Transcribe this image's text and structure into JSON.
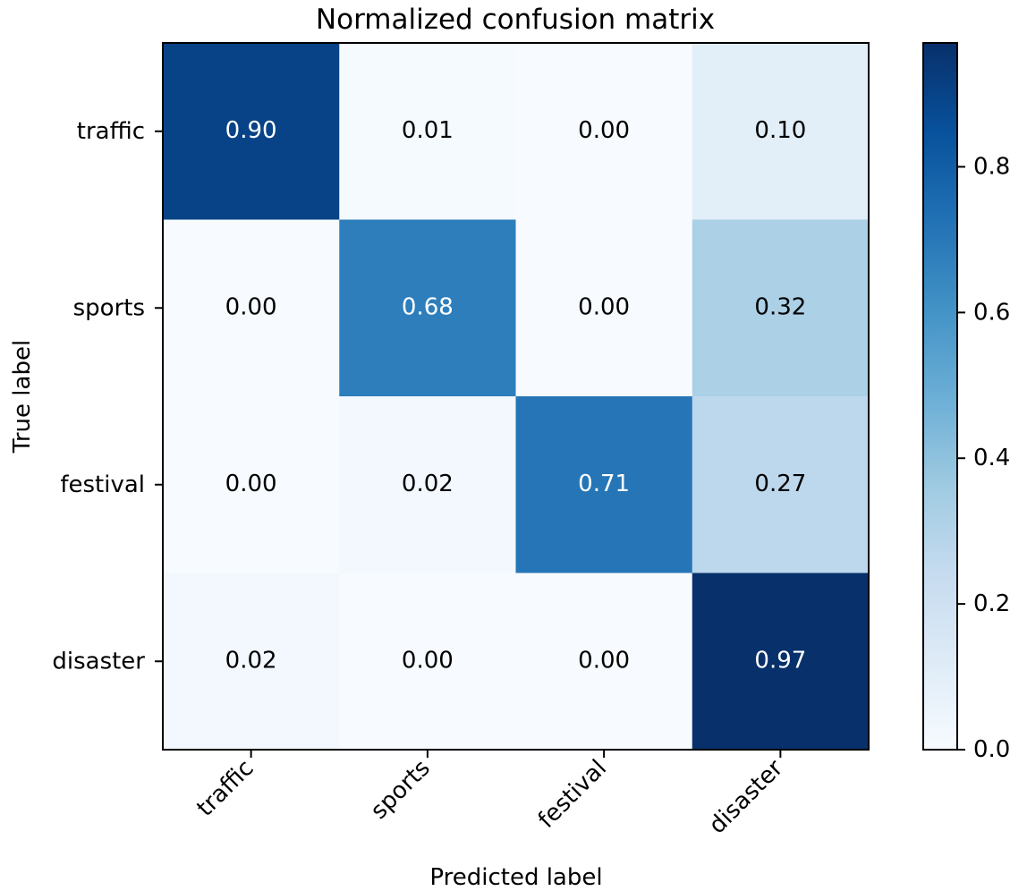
{
  "chart_data": {
    "type": "heatmap",
    "title": "Normalized confusion matrix",
    "xlabel": "Predicted label",
    "ylabel": "True label",
    "x_categories": [
      "traffic",
      "sports",
      "festival",
      "disaster"
    ],
    "y_categories": [
      "traffic",
      "sports",
      "festival",
      "disaster"
    ],
    "values": [
      [
        0.9,
        0.01,
        0.0,
        0.1
      ],
      [
        0.0,
        0.68,
        0.0,
        0.32
      ],
      [
        0.0,
        0.02,
        0.71,
        0.27
      ],
      [
        0.02,
        0.0,
        0.0,
        0.97
      ]
    ],
    "cell_labels": [
      [
        "0.90",
        "0.01",
        "0.00",
        "0.10"
      ],
      [
        "0.00",
        "0.68",
        "0.00",
        "0.32"
      ],
      [
        "0.00",
        "0.02",
        "0.71",
        "0.27"
      ],
      [
        "0.02",
        "0.00",
        "0.00",
        "0.97"
      ]
    ],
    "colormap": "Blues",
    "color_range": [
      0,
      0.97
    ],
    "colorbar": {
      "ticks": [
        0.0,
        0.2,
        0.4,
        0.6,
        0.8
      ],
      "tick_labels": [
        "0.0",
        "0.2",
        "0.4",
        "0.6",
        "0.8"
      ]
    },
    "text_color_dark": "#000000",
    "text_color_light": "#ffffff",
    "grid": false
  }
}
